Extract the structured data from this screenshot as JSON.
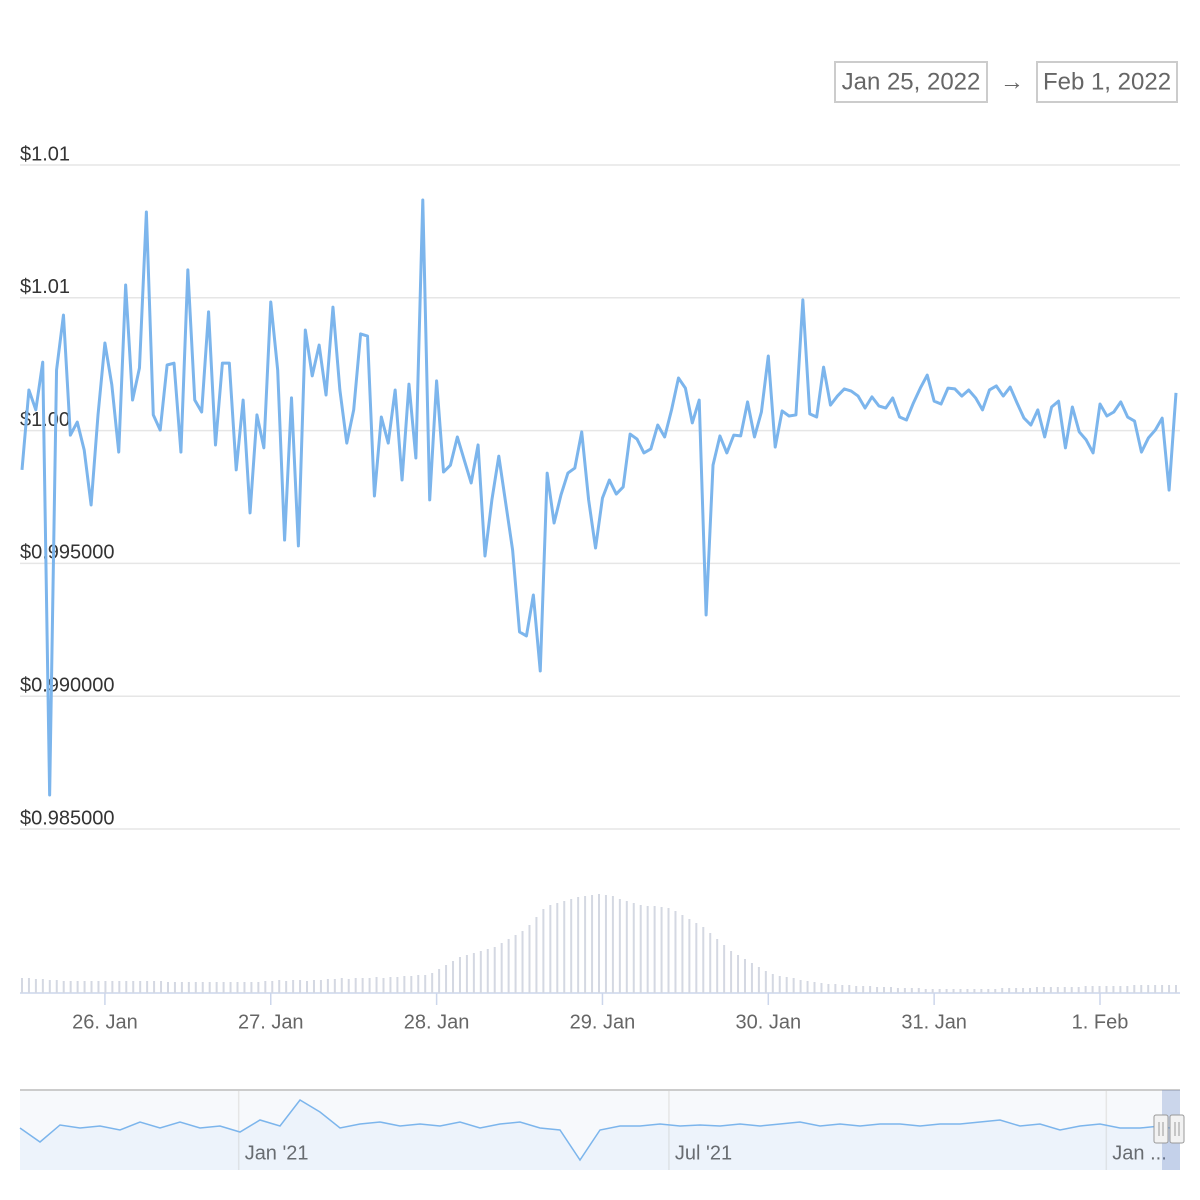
{
  "range_selector": {
    "from": "Jan 25, 2022",
    "separator": "→",
    "to": "Feb 1, 2022"
  },
  "chart_data": [
    {
      "type": "line",
      "color": "#7cb5ec",
      "grid": true,
      "xlim": [
        "2022-01-25T12:00",
        "2022-02-01T11:00"
      ],
      "xticks": [
        {
          "value": "2022-01-26T00:00",
          "label": "26. Jan"
        },
        {
          "value": "2022-01-27T00:00",
          "label": "27. Jan"
        },
        {
          "value": "2022-01-28T00:00",
          "label": "28. Jan"
        },
        {
          "value": "2022-01-29T00:00",
          "label": "29. Jan"
        },
        {
          "value": "2022-01-30T00:00",
          "label": "30. Jan"
        },
        {
          "value": "2022-01-31T00:00",
          "label": "31. Jan"
        },
        {
          "value": "2022-02-01T00:00",
          "label": "1. Feb"
        }
      ],
      "ylim": [
        0.985,
        1.01
      ],
      "yticks": [
        {
          "value": 0.985,
          "label": "$0.985000"
        },
        {
          "value": 0.99,
          "label": "$0.990000"
        },
        {
          "value": 0.995,
          "label": "$0.995000"
        },
        {
          "value": 1.0,
          "label": "$1.00"
        },
        {
          "value": 1.005,
          "label": "$1.01"
        },
        {
          "value": 1.01,
          "label": "$1.01"
        }
      ],
      "values": [
        0.99852,
        1.00153,
        1.00078,
        1.00258,
        0.98628,
        1.00228,
        1.00435,
        0.99983,
        1.00032,
        0.99927,
        0.9972,
        1.00059,
        1.0033,
        1.00172,
        0.99919,
        1.00548,
        1.00115,
        1.00236,
        1.00823,
        1.00059,
        1.00002,
        1.00247,
        1.00254,
        0.99919,
        1.00605,
        1.00115,
        1.0007,
        1.00447,
        0.99946,
        1.00254,
        1.00254,
        0.99852,
        1.00115,
        0.9969,
        1.00059,
        0.99935,
        1.00484,
        1.00228,
        0.99588,
        1.00123,
        0.99566,
        1.00379,
        1.00206,
        1.00322,
        1.00134,
        1.00465,
        1.00153,
        0.99953,
        1.00078,
        1.00364,
        1.00356,
        0.99754,
        1.00051,
        0.99953,
        1.00153,
        0.99814,
        1.00175,
        0.99897,
        1.00868,
        0.99739,
        1.00187,
        0.99844,
        0.9987,
        0.99976,
        0.99889,
        0.99803,
        0.99946,
        0.99528,
        0.99739,
        0.99904,
        0.99727,
        0.9955,
        0.99242,
        0.99227,
        0.99381,
        0.99095,
        0.9984,
        0.99652,
        0.99758,
        0.9984,
        0.99859,
        0.99995,
        0.99739,
        0.99558,
        0.99746,
        0.99814,
        0.99761,
        0.99788,
        0.99987,
        0.99968,
        0.99916,
        0.99931,
        1.00021,
        0.99976,
        1.00078,
        1.00198,
        1.0016,
        1.00029,
        1.00115,
        0.99306,
        0.9987,
        0.9998,
        0.99916,
        0.99983,
        0.9998,
        1.00108,
        0.99976,
        1.0007,
        1.00281,
        0.99938,
        1.00074,
        1.00055,
        1.00059,
        1.00492,
        1.00063,
        1.00051,
        1.00239,
        1.00096,
        1.0013,
        1.00157,
        1.00149,
        1.0013,
        1.00085,
        1.00127,
        1.00093,
        1.00085,
        1.00123,
        1.00051,
        1.0004,
        1.00104,
        1.0016,
        1.00209,
        1.00111,
        1.001,
        1.0016,
        1.00157,
        1.0013,
        1.00153,
        1.00123,
        1.00078,
        1.00153,
        1.00168,
        1.0013,
        1.00164,
        1.00104,
        1.00047,
        1.00021,
        1.00078,
        0.99976,
        1.00089,
        1.00111,
        0.99935,
        1.00089,
        0.99995,
        0.99965,
        0.99916,
        1.001,
        1.00055,
        1.0007,
        1.00108,
        1.00051,
        1.00036,
        0.99919,
        0.99972,
        1.00002,
        1.00047,
        0.99776,
        1.00142
      ]
    },
    {
      "type": "column",
      "color": "#d4d8e2",
      "ylim": [
        0,
        100
      ],
      "values": [
        15,
        15,
        14,
        14,
        13,
        13,
        12,
        12,
        12,
        12,
        12,
        12,
        12,
        12,
        12,
        12,
        12,
        12,
        12,
        12,
        12,
        11,
        11,
        11,
        11,
        11,
        11,
        11,
        11,
        11,
        11,
        11,
        11,
        11,
        11,
        12,
        12,
        13,
        12,
        13,
        13,
        12,
        13,
        13,
        14,
        14,
        15,
        14,
        15,
        15,
        15,
        16,
        15,
        16,
        16,
        17,
        17,
        18,
        18,
        20,
        24,
        28,
        32,
        36,
        38,
        40,
        42,
        44,
        46,
        50,
        54,
        58,
        62,
        68,
        76,
        84,
        88,
        90,
        92,
        94,
        96,
        97,
        98,
        99,
        98,
        97,
        94,
        92,
        90,
        88,
        87,
        87,
        86,
        85,
        82,
        78,
        74,
        70,
        66,
        60,
        54,
        48,
        42,
        38,
        34,
        30,
        26,
        22,
        19,
        17,
        16,
        15,
        13,
        12,
        11,
        10,
        9,
        9,
        8,
        8,
        7,
        7,
        7,
        6,
        6,
        6,
        5,
        5,
        5,
        5,
        4,
        4,
        4,
        4,
        4,
        4,
        4,
        4,
        4,
        4,
        4,
        5,
        5,
        5,
        5,
        5,
        6,
        6,
        6,
        6,
        6,
        6,
        6,
        7,
        7,
        7,
        7,
        7,
        7,
        7,
        8,
        8,
        8,
        8,
        8,
        8,
        8
      ]
    },
    {
      "type": "area",
      "color": "#7cb5ec",
      "ylim": [
        0.975,
        1.025
      ],
      "xlim": [
        "2020-10",
        "2022-02"
      ],
      "xticks": [
        {
          "value": "2021-01",
          "label": "Jan '21"
        },
        {
          "value": "2021-07",
          "label": "Jul '21"
        },
        {
          "value": "2022-01",
          "label": "Jan ..."
        }
      ],
      "values": [
        1.00125,
        0.9925,
        1.00313,
        1.00125,
        1.0025,
        1.0,
        1.005,
        1.00125,
        1.005,
        1.00125,
        1.0025,
        0.99875,
        1.00625,
        1.0025,
        1.01875,
        1.01125,
        1.00125,
        1.00375,
        1.005,
        1.0025,
        1.00375,
        1.0025,
        1.005,
        1.00125,
        1.00375,
        1.005,
        1.00125,
        1.0,
        0.98125,
        1.0,
        1.0025,
        1.0025,
        1.00375,
        1.0025,
        1.00313,
        1.0025,
        1.00375,
        1.0025,
        1.00375,
        1.005,
        1.0025,
        1.00375,
        1.0025,
        1.00375,
        1.00375,
        1.0025,
        1.00375,
        1.00375,
        1.005,
        1.00625,
        1.0025,
        1.00375,
        1.0,
        1.0025,
        1.00375,
        1.00125,
        1.00125,
        1.0025,
        1.0
      ]
    }
  ]
}
